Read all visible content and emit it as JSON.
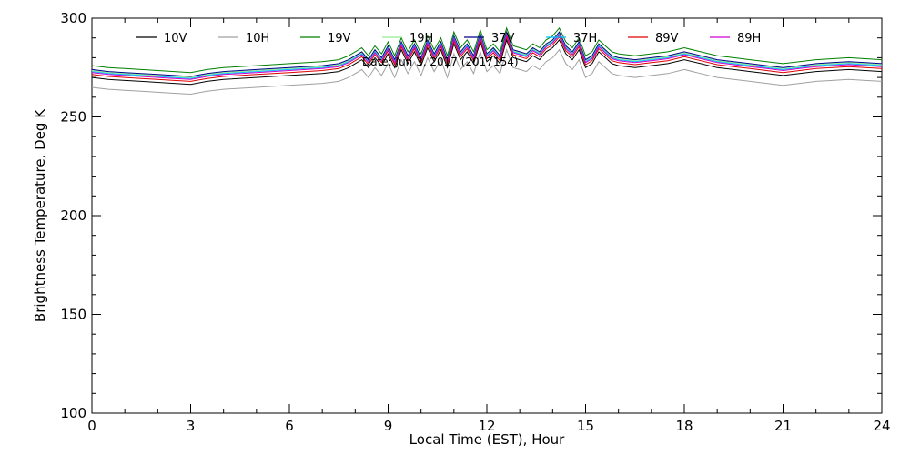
{
  "chart_data": {
    "type": "line",
    "title": "",
    "annotation": "Date: Jun  3, 2017 (2017154)",
    "xlabel": "Local Time (EST), Hour",
    "ylabel": "Brightness Temperature, Deg K",
    "xlim": [
      0,
      24
    ],
    "ylim": [
      100,
      300
    ],
    "xticks": [
      0,
      3,
      6,
      9,
      12,
      15,
      18,
      21,
      24
    ],
    "yticks": [
      100,
      150,
      200,
      250,
      300
    ],
    "grid": false,
    "legend_position": "top",
    "series": [
      {
        "name": "10V",
        "color": "#000000",
        "offset": -1.0
      },
      {
        "name": "10H",
        "color": "#a0a0a0",
        "offset": -6.0
      },
      {
        "name": "19V",
        "color": "#008000",
        "offset": 5.0
      },
      {
        "name": "19H",
        "color": "#90ee90",
        "offset": 2.5
      },
      {
        "name": "37V",
        "color": "#00008b",
        "offset": 3.0
      },
      {
        "name": "37H",
        "color": "#00bfff",
        "offset": 2.0
      },
      {
        "name": "89V",
        "color": "#e00000",
        "offset": 0.5
      },
      {
        "name": "89H",
        "color": "#d000d0",
        "offset": 1.5
      }
    ],
    "base_profile": {
      "x": [
        0,
        0.5,
        1,
        1.5,
        2,
        2.5,
        3,
        3.5,
        4,
        5,
        6,
        7,
        7.5,
        7.8,
        8.0,
        8.2,
        8.4,
        8.6,
        8.8,
        9.0,
        9.2,
        9.4,
        9.6,
        9.8,
        10.0,
        10.2,
        10.4,
        10.6,
        10.8,
        11.0,
        11.2,
        11.4,
        11.6,
        11.8,
        12.0,
        12.2,
        12.4,
        12.6,
        12.8,
        13.0,
        13.2,
        13.4,
        13.6,
        13.8,
        14.0,
        14.2,
        14.4,
        14.6,
        14.8,
        15.0,
        15.2,
        15.4,
        15.6,
        15.8,
        16.0,
        16.5,
        17.0,
        17.5,
        18.0,
        18.5,
        19.0,
        19.5,
        20.0,
        20.5,
        21.0,
        21.5,
        22.0,
        22.5,
        23.0,
        23.5,
        24.0
      ],
      "y": [
        271,
        270,
        269.5,
        269,
        268.5,
        268,
        267.5,
        269,
        270,
        271,
        272,
        273,
        274,
        276,
        278,
        280,
        276,
        281,
        277,
        283,
        276,
        285,
        278,
        284,
        277,
        286,
        279,
        285,
        276,
        288,
        280,
        284,
        278,
        289,
        279,
        282,
        278,
        290,
        281,
        280,
        279,
        282,
        280,
        284,
        286,
        290,
        283,
        280,
        285,
        276,
        278,
        284,
        281,
        278,
        277,
        276,
        277,
        278,
        280,
        278,
        276,
        275,
        274,
        273,
        272,
        273,
        274,
        274.5,
        275,
        274.5,
        274
      ]
    }
  }
}
